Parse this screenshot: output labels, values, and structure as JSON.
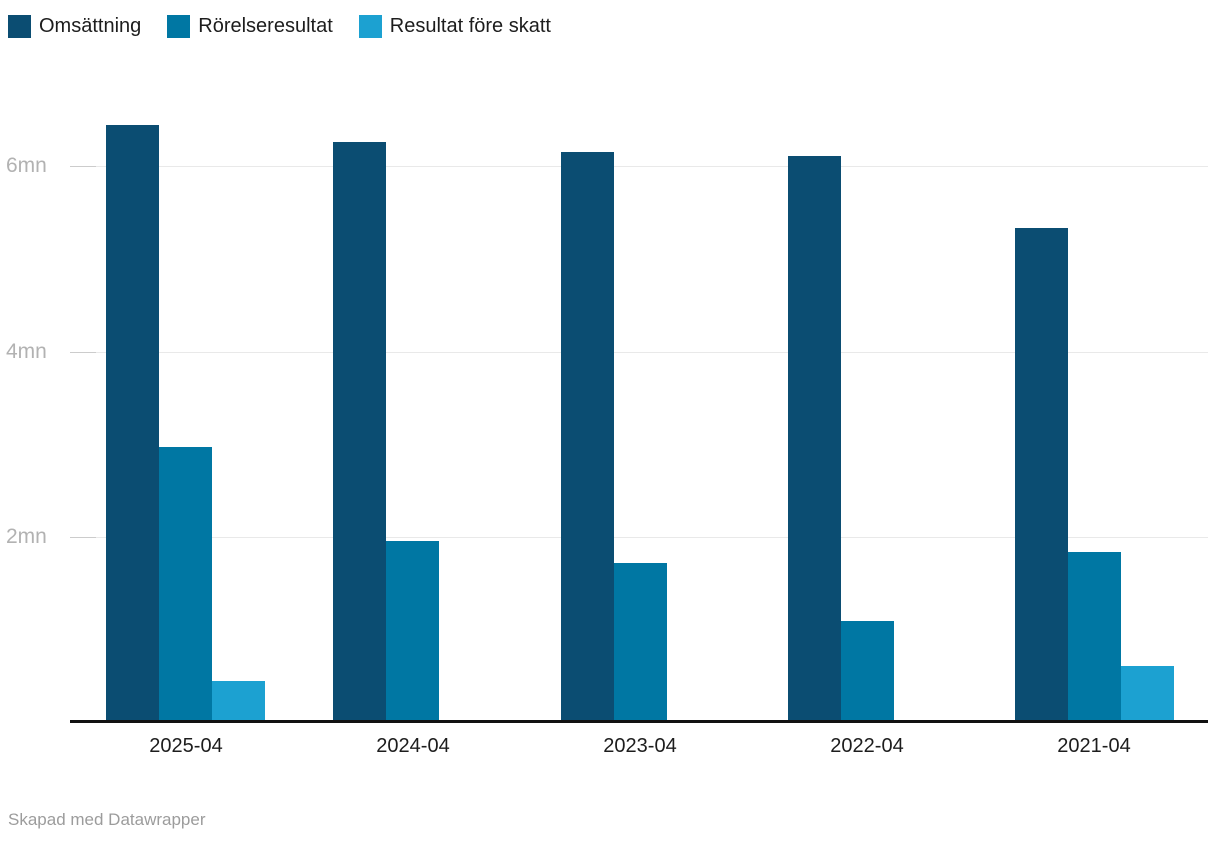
{
  "chart_data": {
    "type": "bar",
    "title": "",
    "categories": [
      "2025-04",
      "2024-04",
      "2023-04",
      "2022-04",
      "2021-04"
    ],
    "series": [
      {
        "name": "Omsättning",
        "color": "#0b4d72",
        "values": [
          6.45,
          6.26,
          6.16,
          6.11,
          5.34
        ]
      },
      {
        "name": "Rörelseresultat",
        "color": "#0077a3",
        "values": [
          2.97,
          1.96,
          1.72,
          1.09,
          1.84
        ]
      },
      {
        "name": "Resultat före skatt",
        "color": "#1ca1d1",
        "values": [
          0.44,
          0,
          0,
          0,
          0.61
        ]
      }
    ],
    "yticks": [
      {
        "value": 2,
        "label": "2mn"
      },
      {
        "value": 4,
        "label": "4mn"
      },
      {
        "value": 6,
        "label": "6mn"
      }
    ],
    "ylim": [
      0,
      6.6
    ],
    "unit": "mn",
    "grid": "horizontal",
    "legend_position": "top-left",
    "xlabel": "",
    "ylabel": ""
  },
  "colors": {
    "background": "#ffffff",
    "gridline": "#e9e9e9",
    "tick": "#cccccc",
    "axis": "#111111",
    "ylabel_text": "#b2b2b2",
    "xlabel_text": "#1d1d1d",
    "legend_text": "#1d1d1d",
    "footer_text": "#9c9c9c"
  },
  "footer": {
    "attribution": "Skapad med Datawrapper"
  }
}
